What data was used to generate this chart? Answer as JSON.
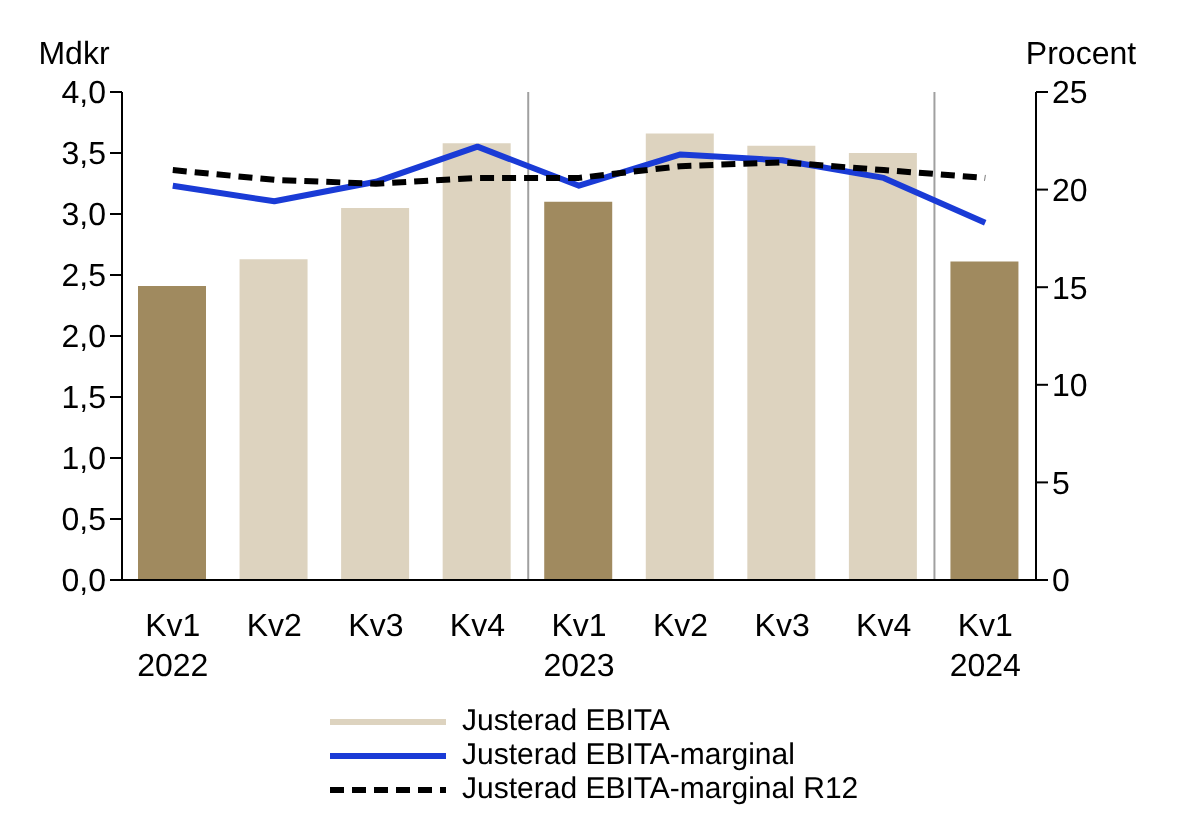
{
  "chart_data": {
    "type": "bar",
    "categories": [
      "Kv1\n2022",
      "Kv2",
      "Kv3",
      "Kv4",
      "Kv1\n2023",
      "Kv2",
      "Kv3",
      "Kv4",
      "Kv1\n2024"
    ],
    "ylabel": "Mdkr",
    "y2label": "Procent",
    "ylim": [
      0,
      4
    ],
    "yticks": [
      {
        "value": 0,
        "label": "0,0"
      },
      {
        "value": 0.5,
        "label": "0,5"
      },
      {
        "value": 1,
        "label": "1,0"
      },
      {
        "value": 1.5,
        "label": "1,5"
      },
      {
        "value": 2,
        "label": "2,0"
      },
      {
        "value": 2.5,
        "label": "2,5"
      },
      {
        "value": 3,
        "label": "3,0"
      },
      {
        "value": 3.5,
        "label": "3,5"
      },
      {
        "value": 4,
        "label": "4,0"
      }
    ],
    "y2lim": [
      0,
      25
    ],
    "y2ticks": [
      0,
      5,
      10,
      15,
      20,
      25
    ],
    "series": [
      {
        "name": "Justerad EBITA",
        "color": "#ddd3bf",
        "colors": [
          "#a08a5f",
          "#ddd3bf",
          "#ddd3bf",
          "#ddd3bf",
          "#a08a5f",
          "#ddd3bf",
          "#ddd3bf",
          "#ddd3bf",
          "#a08a5f"
        ],
        "values": [
          2.41,
          2.63,
          3.05,
          3.58,
          3.1,
          3.66,
          3.56,
          3.5,
          2.61
        ]
      },
      {
        "name": "Justerad EBITA-marginal",
        "type": "line",
        "axis": "y2",
        "color": "#1a3bd6",
        "line_style": "solid",
        "values": [
          20.2,
          19.4,
          20.4,
          22.2,
          20.2,
          21.8,
          21.5,
          20.6,
          18.3
        ]
      },
      {
        "name": "Justerad EBITA-marginal R12",
        "type": "line",
        "axis": "y2",
        "color": "#000000",
        "line_style": "dashed",
        "values": [
          21.0,
          20.5,
          20.3,
          20.6,
          20.6,
          21.2,
          21.4,
          21.0,
          20.6
        ]
      }
    ],
    "legend": "bottom",
    "grid": false,
    "marker": "none"
  }
}
